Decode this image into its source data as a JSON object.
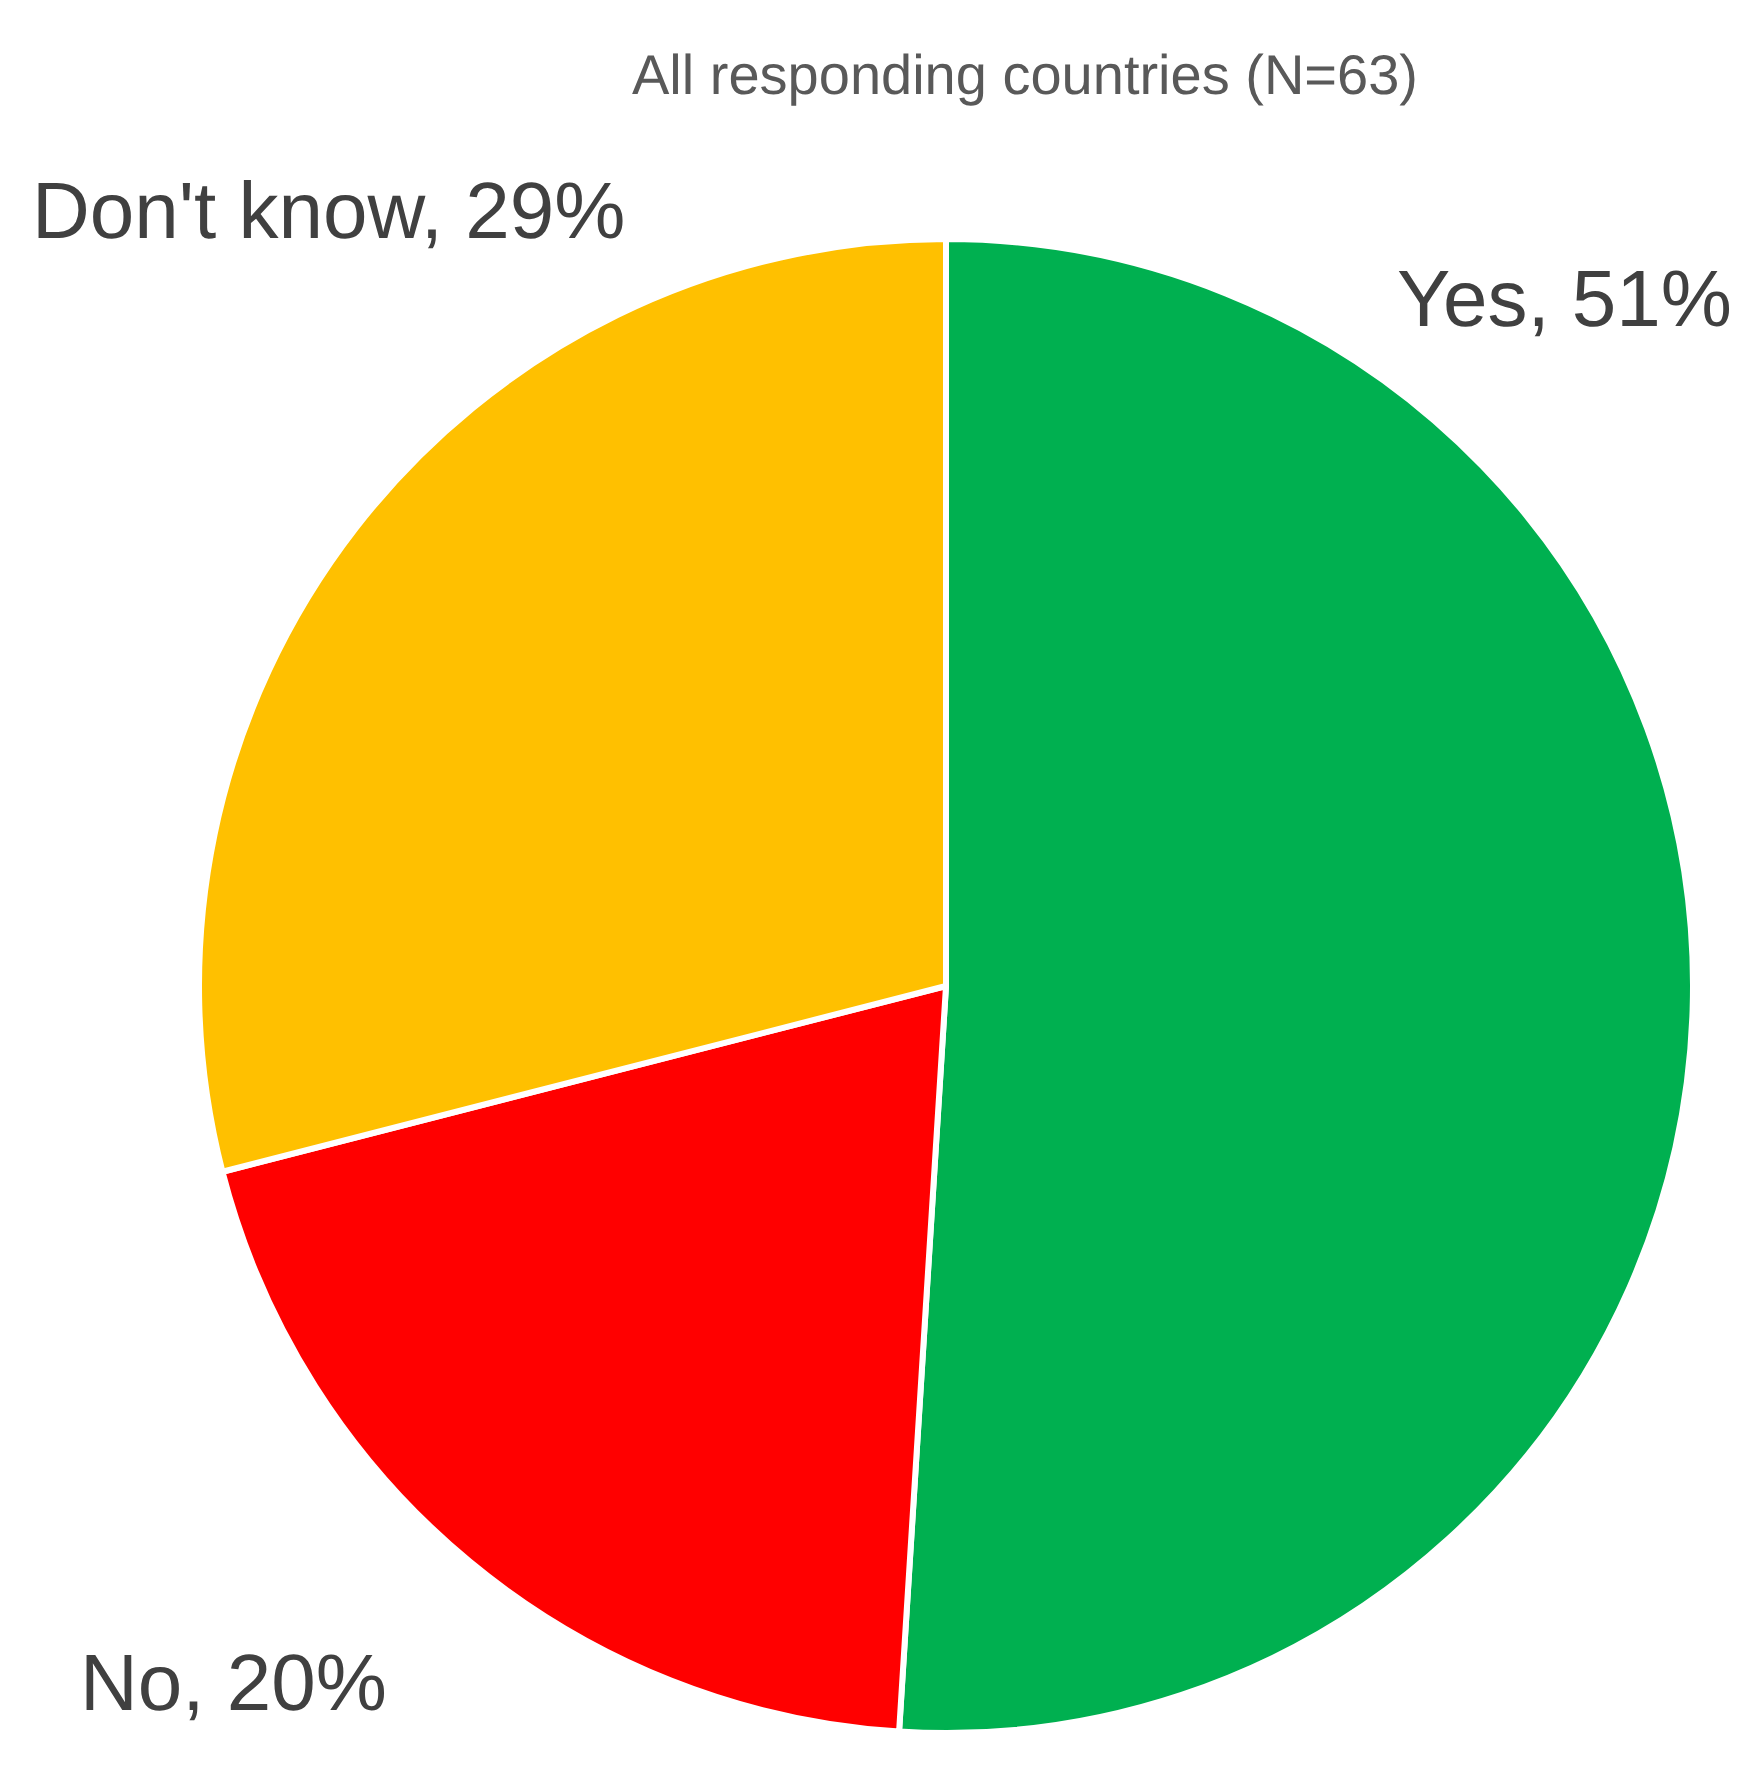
{
  "chart_data": {
    "type": "pie",
    "title": "All responding countries (N=63)",
    "categories": [
      "Yes",
      "No",
      "Don't know"
    ],
    "values": [
      51,
      20,
      29
    ],
    "value_labels": [
      "51%",
      "20%",
      "29%"
    ],
    "colors": [
      "#00b050",
      "#ff0000",
      "#ffc000"
    ]
  }
}
